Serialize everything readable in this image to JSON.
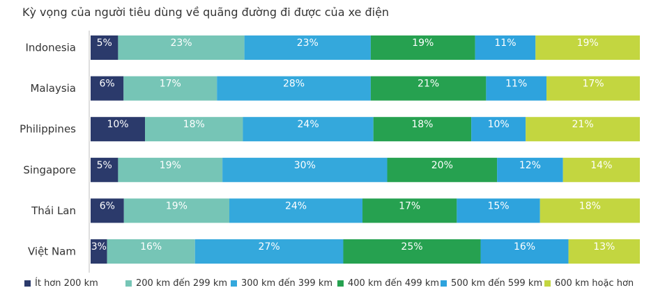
{
  "title": "Kỳ vọng của người tiêu dùng về quãng đường đi được của xe điện",
  "chart_data": {
    "type": "bar",
    "orientation": "horizontal",
    "stacked": true,
    "percent": true,
    "title": "Kỳ vọng của người tiêu dùng về quãng đường đi được của xe điện",
    "categories": [
      "Indonesia",
      "Malaysia",
      "Philippines",
      "Singapore",
      "Thái Lan",
      "Việt Nam"
    ],
    "series": [
      {
        "name": "Ít hơn 200 km",
        "color": "#2b3a6b",
        "values": [
          5,
          6,
          10,
          5,
          6,
          3
        ]
      },
      {
        "name": "200 km đến 299 km",
        "color": "#76c5b6",
        "values": [
          23,
          17,
          18,
          19,
          19,
          16
        ]
      },
      {
        "name": "300 km đến 399 km",
        "color": "#34a8dc",
        "values": [
          23,
          28,
          24,
          30,
          24,
          27
        ]
      },
      {
        "name": "400 km đến 499 km",
        "color": "#26a150",
        "values": [
          19,
          21,
          18,
          20,
          17,
          25
        ]
      },
      {
        "name": "500 km đến 599 km",
        "color": "#2ea3dd",
        "values": [
          11,
          11,
          10,
          12,
          15,
          16
        ]
      },
      {
        "name": "600 km hoặc hơn",
        "color": "#c3d640",
        "values": [
          19,
          17,
          21,
          14,
          18,
          13
        ]
      }
    ],
    "data_labels": true,
    "legend_position": "bottom",
    "grid": false
  }
}
